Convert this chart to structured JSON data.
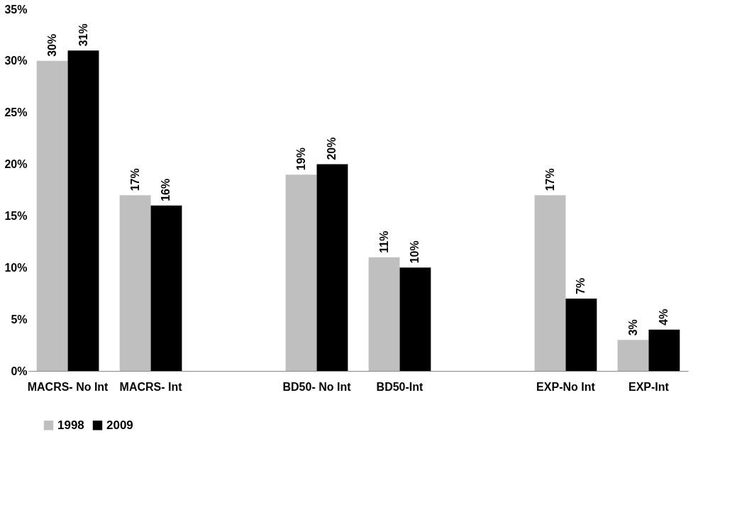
{
  "chart_data": {
    "type": "bar",
    "categories": [
      "MACRS-\nNo Int",
      "MACRS-\nInt",
      null,
      "BD50-\nNo Int",
      "BD50-Int",
      null,
      "EXP-No\nInt",
      "EXP-Int"
    ],
    "series": [
      {
        "name": "1998",
        "color": "#bfbfbf",
        "values": [
          30,
          17,
          null,
          19,
          11,
          null,
          17,
          3
        ],
        "value_labels": [
          "30%",
          "17%",
          null,
          "19%",
          "11%",
          null,
          "17%",
          "3%"
        ]
      },
      {
        "name": "2009",
        "color": "#000000",
        "values": [
          31,
          16,
          null,
          20,
          10,
          null,
          7,
          4
        ],
        "value_labels": [
          "31%",
          "16%",
          null,
          "20%",
          "10%",
          null,
          "7%",
          "4%"
        ]
      }
    ],
    "ylim": [
      0,
      35
    ],
    "yticks": [
      {
        "value": 0,
        "label": "0%"
      },
      {
        "value": 5,
        "label": "5%"
      },
      {
        "value": 10,
        "label": "10%"
      },
      {
        "value": 15,
        "label": "15%"
      },
      {
        "value": 20,
        "label": "20%"
      },
      {
        "value": 25,
        "label": "25%"
      },
      {
        "value": 30,
        "label": "30%"
      },
      {
        "value": 35,
        "label": "35%"
      }
    ],
    "grid": false,
    "legend": "bottom"
  }
}
